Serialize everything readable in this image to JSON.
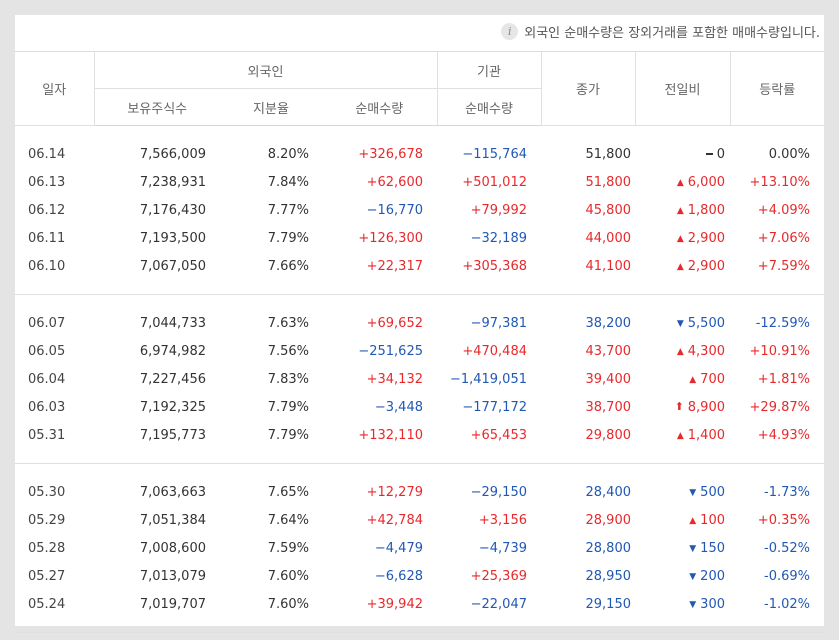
{
  "notice": "외국인 순매수량은 장외거래를 포함한 매매수량입니다.",
  "headers": {
    "date": "일자",
    "foreign": "외국인",
    "institution": "기관",
    "close": "종가",
    "change": "전일비",
    "rate": "등락률",
    "holdings": "보유주식수",
    "ratio": "지분율",
    "foreign_net": "순매수량",
    "inst_net": "순매수량"
  },
  "colors": {
    "up": "#e8292c",
    "down": "#2158b5",
    "neutral": "#333333"
  },
  "groups": [
    [
      {
        "date": "06.14",
        "holdings": "7,566,009",
        "ratio": "8.20%",
        "foreign_net": "+326,678",
        "inst_net": "−115,764",
        "close": "51,800",
        "change": "0",
        "dir": "flat",
        "rate": "0.00%"
      },
      {
        "date": "06.13",
        "holdings": "7,238,931",
        "ratio": "7.84%",
        "foreign_net": "+62,600",
        "inst_net": "+501,012",
        "close": "51,800",
        "change": "6,000",
        "dir": "up",
        "rate": "+13.10%"
      },
      {
        "date": "06.12",
        "holdings": "7,176,430",
        "ratio": "7.77%",
        "foreign_net": "−16,770",
        "inst_net": "+79,992",
        "close": "45,800",
        "change": "1,800",
        "dir": "up",
        "rate": "+4.09%"
      },
      {
        "date": "06.11",
        "holdings": "7,193,500",
        "ratio": "7.79%",
        "foreign_net": "+126,300",
        "inst_net": "−32,189",
        "close": "44,000",
        "change": "2,900",
        "dir": "up",
        "rate": "+7.06%"
      },
      {
        "date": "06.10",
        "holdings": "7,067,050",
        "ratio": "7.66%",
        "foreign_net": "+22,317",
        "inst_net": "+305,368",
        "close": "41,100",
        "change": "2,900",
        "dir": "up",
        "rate": "+7.59%"
      }
    ],
    [
      {
        "date": "06.07",
        "holdings": "7,044,733",
        "ratio": "7.63%",
        "foreign_net": "+69,652",
        "inst_net": "−97,381",
        "close": "38,200",
        "change": "5,500",
        "dir": "down",
        "rate": "-12.59%"
      },
      {
        "date": "06.05",
        "holdings": "6,974,982",
        "ratio": "7.56%",
        "foreign_net": "−251,625",
        "inst_net": "+470,484",
        "close": "43,700",
        "change": "4,300",
        "dir": "up",
        "rate": "+10.91%"
      },
      {
        "date": "06.04",
        "holdings": "7,227,456",
        "ratio": "7.83%",
        "foreign_net": "+34,132",
        "inst_net": "−1,419,051",
        "close": "39,400",
        "change": "700",
        "dir": "up",
        "rate": "+1.81%"
      },
      {
        "date": "06.03",
        "holdings": "7,192,325",
        "ratio": "7.79%",
        "foreign_net": "−3,448",
        "inst_net": "−177,172",
        "close": "38,700",
        "change": "8,900",
        "dir": "upper",
        "rate": "+29.87%"
      },
      {
        "date": "05.31",
        "holdings": "7,195,773",
        "ratio": "7.79%",
        "foreign_net": "+132,110",
        "inst_net": "+65,453",
        "close": "29,800",
        "change": "1,400",
        "dir": "up",
        "rate": "+4.93%"
      }
    ],
    [
      {
        "date": "05.30",
        "holdings": "7,063,663",
        "ratio": "7.65%",
        "foreign_net": "+12,279",
        "inst_net": "−29,150",
        "close": "28,400",
        "change": "500",
        "dir": "down",
        "rate": "-1.73%"
      },
      {
        "date": "05.29",
        "holdings": "7,051,384",
        "ratio": "7.64%",
        "foreign_net": "+42,784",
        "inst_net": "+3,156",
        "close": "28,900",
        "change": "100",
        "dir": "up",
        "rate": "+0.35%"
      },
      {
        "date": "05.28",
        "holdings": "7,008,600",
        "ratio": "7.59%",
        "foreign_net": "−4,479",
        "inst_net": "−4,739",
        "close": "28,800",
        "change": "150",
        "dir": "down",
        "rate": "-0.52%"
      },
      {
        "date": "05.27",
        "holdings": "7,013,079",
        "ratio": "7.60%",
        "foreign_net": "−6,628",
        "inst_net": "+25,369",
        "close": "28,950",
        "change": "200",
        "dir": "down",
        "rate": "-0.69%"
      },
      {
        "date": "05.24",
        "holdings": "7,019,707",
        "ratio": "7.60%",
        "foreign_net": "+39,942",
        "inst_net": "−22,047",
        "close": "29,150",
        "change": "300",
        "dir": "down",
        "rate": "-1.02%"
      }
    ]
  ]
}
